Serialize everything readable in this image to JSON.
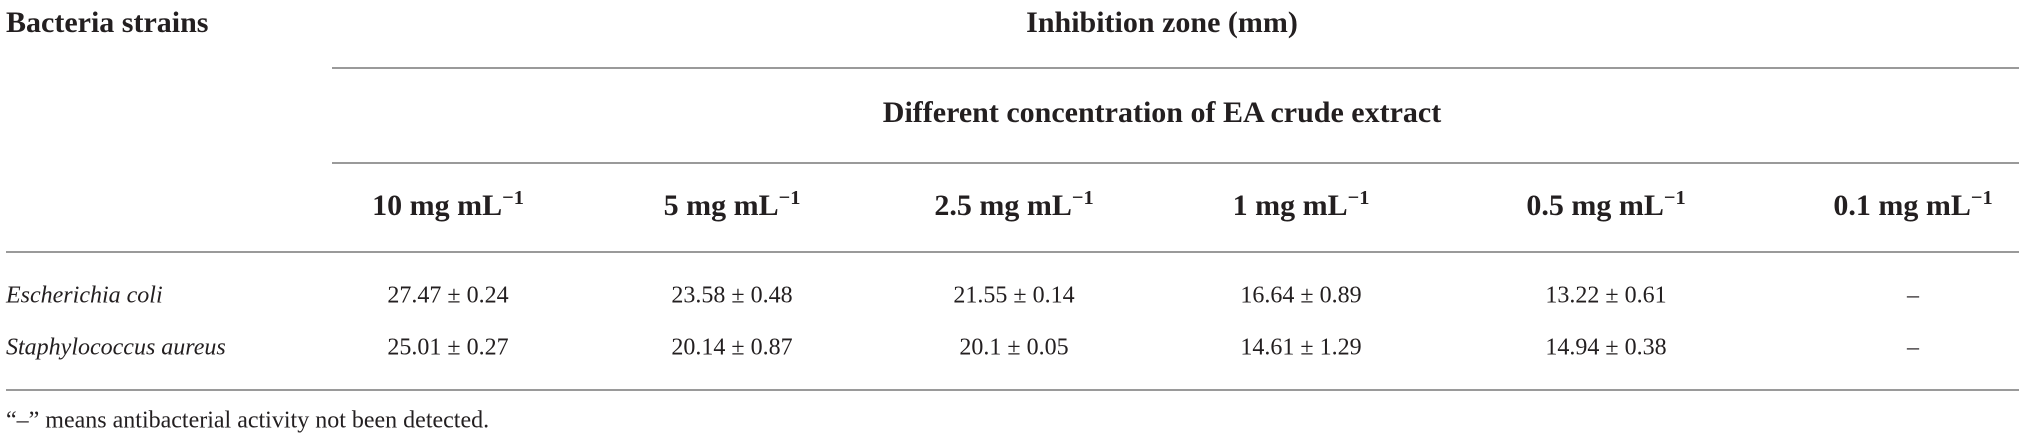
{
  "header": {
    "row_label": "Bacteria strains",
    "group": "Inhibition zone (mm)",
    "subgroup": "Different concentration of EA crude extract"
  },
  "table": {
    "columns": [
      {
        "text": "10 mg mL",
        "sup": "−1"
      },
      {
        "text": "5 mg mL",
        "sup": "−1"
      },
      {
        "text": "2.5 mg mL",
        "sup": "−1"
      },
      {
        "text": "1 mg mL",
        "sup": "−1"
      },
      {
        "text": "0.5 mg mL",
        "sup": "−1"
      },
      {
        "text": "0.1 mg mL",
        "sup": "−1"
      }
    ],
    "rows": [
      {
        "name": "Escherichia coli",
        "cells": [
          "27.47 ± 0.24",
          "23.58 ± 0.48",
          "21.55 ± 0.14",
          "16.64 ± 0.89",
          "13.22 ± 0.61",
          "–"
        ]
      },
      {
        "name": "Staphylococcus aureus",
        "cells": [
          "25.01 ± 0.27",
          "20.14 ± 0.87",
          "20.1 ± 0.05",
          "14.61 ± 1.29",
          "14.94 ± 0.38",
          "–"
        ]
      }
    ]
  },
  "footnote": "“–” means antibacterial activity not been detected."
}
